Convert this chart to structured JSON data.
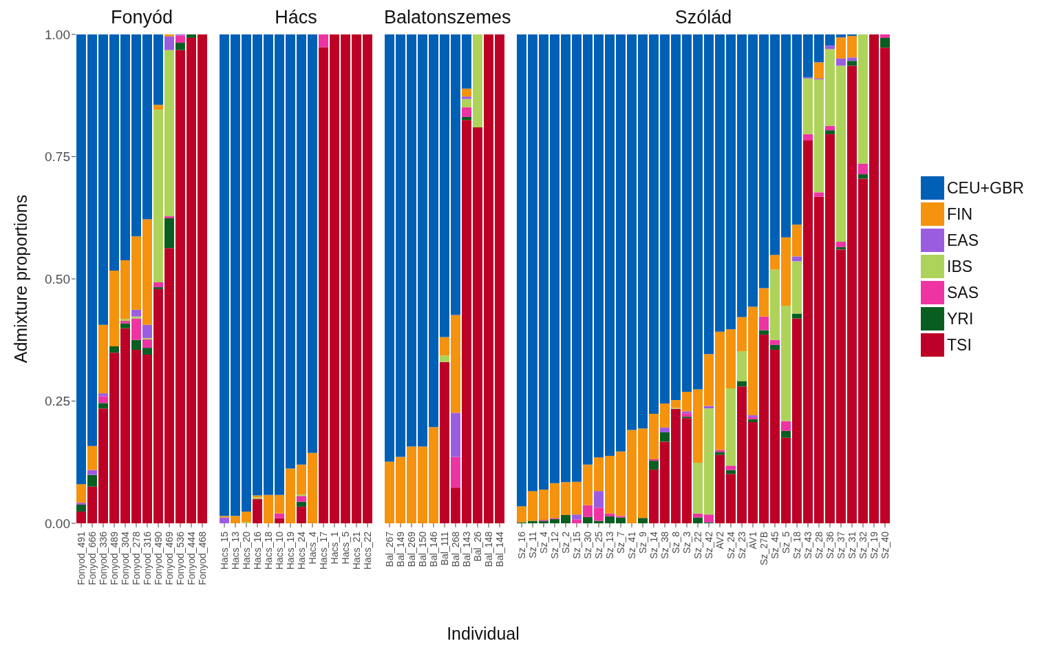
{
  "chart_data": [
    {
      "type": "bar",
      "title": "Fonyód",
      "ylabel": "Admixture proportions",
      "stacked": true,
      "categories": [
        "Fonyod_491",
        "Fonyod_666",
        "Fonyod_336",
        "Fonyod_489",
        "Fonyod_304",
        "Fonyod_278",
        "Fonyod_316",
        "Fonyod_490",
        "Fonyod_469",
        "Fonyod_536",
        "Fonyod_444",
        "Fonyod_468"
      ],
      "ylim": [
        0,
        1
      ],
      "yticks": [
        {
          "value": 0,
          "label": "0.00"
        },
        {
          "value": 0.25,
          "label": "0.25"
        },
        {
          "value": 0.5,
          "label": "0.50"
        },
        {
          "value": 0.75,
          "label": "0.75"
        },
        {
          "value": 1,
          "label": "1.00"
        }
      ],
      "series": [
        {
          "color": "#bd0026",
          "values": [
            0.024,
            0.075,
            0.235,
            0.349,
            0.399,
            0.355,
            0.345,
            0.479,
            0.563,
            0.968,
            0.993,
            1
          ]
        },
        {
          "color": "#075e20",
          "values": [
            0.014,
            0.024,
            0.011,
            0.013,
            0.01,
            0.02,
            0.014,
            0.004,
            0.061,
            0.015,
            0.007,
            0
          ]
        },
        {
          "color": "#ee33a3",
          "values": [
            0,
            0,
            0.014,
            0,
            0.005,
            0.044,
            0.017,
            0.01,
            0.004,
            0.015,
            0,
            0
          ]
        },
        {
          "color": "#aed35a",
          "values": [
            0,
            0,
            0,
            0,
            0.004,
            0.004,
            0.003,
            0.353,
            0.34,
            0,
            0,
            0
          ]
        },
        {
          "color": "#9b5de0",
          "values": [
            0.004,
            0.01,
            0.006,
            0,
            0,
            0.014,
            0.027,
            0,
            0.028,
            0.002,
            0,
            0
          ]
        },
        {
          "color": "#f5920e",
          "values": [
            0.038,
            0.049,
            0.14,
            0.155,
            0.12,
            0.15,
            0.216,
            0.01,
            0.004,
            0,
            0,
            0
          ]
        },
        {
          "color": "#0060b6",
          "values": [
            0.92,
            0.842,
            0.594,
            0.483,
            0.462,
            0.413,
            0.378,
            0.144,
            0,
            0,
            0,
            0
          ]
        }
      ]
    },
    {
      "type": "bar",
      "title": "Hács",
      "stacked": true,
      "tick_labels": "x",
      "categories": [
        "Hacs_15",
        "Hacs_13",
        "Hacs_20",
        "Hacs_16",
        "Hacs_18",
        "Hacs_10",
        "Hacs_19",
        "Hacs_24",
        "Hacs_4",
        "Hacs_17",
        "Hacs_1",
        "Hacs_5",
        "Hacs_21",
        "Hacs_22"
      ],
      "ylim": [
        0,
        1
      ],
      "series": [
        {
          "color": "#bd0026",
          "values": [
            0,
            0,
            0,
            0.05,
            0,
            0.01,
            0,
            0.034,
            0,
            0.974,
            1,
            1,
            1,
            1
          ]
        },
        {
          "color": "#075e20",
          "values": [
            0,
            0,
            0,
            0,
            0,
            0,
            0,
            0.01,
            0,
            0,
            0,
            0,
            0,
            0
          ]
        },
        {
          "color": "#ee33a3",
          "values": [
            0,
            0,
            0,
            0,
            0,
            0.01,
            0,
            0.012,
            0,
            0.026,
            0,
            0,
            0,
            0
          ]
        },
        {
          "color": "#aed35a",
          "values": [
            0,
            0,
            0.002,
            0.003,
            0,
            0,
            0,
            0.003,
            0,
            0,
            0,
            0,
            0,
            0
          ]
        },
        {
          "color": "#9b5de0",
          "values": [
            0.012,
            0,
            0,
            0,
            0,
            0,
            0,
            0,
            0,
            0,
            0,
            0,
            0,
            0
          ]
        },
        {
          "color": "#f5920e",
          "values": [
            0.003,
            0.015,
            0.022,
            0.004,
            0.058,
            0.038,
            0.112,
            0.061,
            0.144,
            0,
            0,
            0,
            0,
            0
          ]
        },
        {
          "color": "#0060b6",
          "values": [
            0.985,
            0.985,
            0.976,
            0.943,
            0.942,
            0.942,
            0.888,
            0.88,
            0.856,
            0,
            0,
            0,
            0,
            0
          ]
        }
      ]
    },
    {
      "type": "bar",
      "title": "Balatonszemes",
      "xlabel": "Individual",
      "stacked": true,
      "tick_labels": "x",
      "categories": [
        "Bal_267",
        "Bal_149",
        "Bal_269",
        "Bal_150",
        "Bal_146",
        "Bal_111",
        "Bal_268",
        "Bal_143",
        "Bal_26",
        "Bal_148",
        "Bal_144"
      ],
      "ylim": [
        0,
        1
      ],
      "series": [
        {
          "color": "#bd0026",
          "values": [
            0,
            0,
            0,
            0,
            0,
            0.33,
            0.073,
            0.825,
            0.81,
            1,
            1
          ]
        },
        {
          "color": "#075e20",
          "values": [
            0,
            0,
            0,
            0,
            0,
            0,
            0,
            0.006,
            0,
            0,
            0
          ]
        },
        {
          "color": "#ee33a3",
          "values": [
            0,
            0,
            0,
            0,
            0,
            0,
            0.063,
            0.02,
            0,
            0,
            0
          ]
        },
        {
          "color": "#aed35a",
          "values": [
            0,
            0,
            0,
            0,
            0,
            0.013,
            0,
            0.017,
            0.19,
            0,
            0
          ]
        },
        {
          "color": "#9b5de0",
          "values": [
            0,
            0,
            0,
            0,
            0,
            0,
            0.09,
            0.005,
            0,
            0,
            0
          ]
        },
        {
          "color": "#f5920e",
          "values": [
            0.126,
            0.136,
            0.157,
            0.157,
            0.197,
            0.038,
            0.2,
            0.016,
            0,
            0,
            0
          ]
        },
        {
          "color": "#0060b6",
          "values": [
            0.874,
            0.864,
            0.843,
            0.843,
            0.803,
            0.619,
            0.574,
            0.111,
            0,
            0,
            0
          ]
        }
      ]
    },
    {
      "type": "bar",
      "title": "Szólád",
      "stacked": true,
      "tick_labels": "x",
      "legend": "right",
      "categories": [
        "Sz_16",
        "Sz_11",
        "Sz_4",
        "Sz_12",
        "Sz_2",
        "Sz_15",
        "Sz_30",
        "Sz_25",
        "Sz_13",
        "Sz_7",
        "Sz_41",
        "Sz_9",
        "Sz_14",
        "Sz_38",
        "Sz_8",
        "Sz_3",
        "Sz_22",
        "Sz_42",
        "AV2",
        "Sz_24",
        "Sz_23",
        "AV1",
        "Sz_27B",
        "Sz_45",
        "Sz_5",
        "Sz_18",
        "Sz_43",
        "Sz_28",
        "Sz_36",
        "Sz_37",
        "Sz_31",
        "Sz_32",
        "Sz_19",
        "Sz_40"
      ],
      "ylim": [
        0,
        1
      ],
      "series": [
        {
          "name": "TSI",
          "color": "#bd0026",
          "values": [
            0,
            0,
            0,
            0,
            0,
            0,
            0,
            0,
            0,
            0,
            0,
            0,
            0.11,
            0.167,
            0.234,
            0.215,
            0,
            0,
            0.14,
            0.101,
            0.28,
            0.207,
            0.386,
            0.355,
            0.175,
            0.419,
            0.783,
            0.668,
            0.796,
            0.56,
            0.936,
            0.705,
            1,
            0.973
          ]
        },
        {
          "name": "YRI",
          "color": "#075e20",
          "values": [
            0.002,
            0.005,
            0.005,
            0.009,
            0.017,
            0,
            0.013,
            0.005,
            0.014,
            0.012,
            0,
            0.011,
            0.018,
            0.019,
            0,
            0.003,
            0.012,
            0.002,
            0.006,
            0.008,
            0.011,
            0.006,
            0.009,
            0.01,
            0.014,
            0.01,
            0,
            0,
            0.008,
            0.005,
            0.01,
            0.009,
            0,
            0.02
          ]
        },
        {
          "name": "SAS",
          "color": "#ee33a3",
          "values": [
            0,
            0,
            0.002,
            0.002,
            0,
            0.008,
            0.024,
            0.027,
            0.006,
            0.003,
            0,
            0,
            0.003,
            0,
            0,
            0.007,
            0.008,
            0.016,
            0.004,
            0.009,
            0,
            0.004,
            0.028,
            0.01,
            0.02,
            0,
            0.013,
            0.009,
            0.009,
            0.011,
            0,
            0.022,
            0,
            0.007
          ]
        },
        {
          "name": "IBS",
          "color": "#aed35a",
          "values": [
            0,
            0,
            0,
            0,
            0,
            0,
            0,
            0,
            0,
            0,
            0,
            0,
            0,
            0,
            0.002,
            0,
            0.104,
            0.217,
            0,
            0.158,
            0.061,
            0,
            0,
            0.144,
            0.236,
            0.107,
            0.114,
            0.231,
            0.157,
            0.36,
            0,
            0.264,
            0,
            0
          ]
        },
        {
          "name": "EAS",
          "color": "#9b5de0",
          "values": [
            0,
            0,
            0,
            0,
            0,
            0.01,
            0,
            0.034,
            0,
            0,
            0,
            0,
            0,
            0.01,
            0,
            0.004,
            0,
            0.005,
            0,
            0,
            0,
            0.004,
            0,
            0,
            0,
            0.01,
            0.002,
            0.002,
            0.007,
            0.015,
            0.007,
            0,
            0,
            0
          ]
        },
        {
          "name": "FIN",
          "color": "#f5920e",
          "values": [
            0.033,
            0.061,
            0.062,
            0.071,
            0.067,
            0.067,
            0.083,
            0.069,
            0.118,
            0.132,
            0.191,
            0.183,
            0.093,
            0.049,
            0.016,
            0.04,
            0.15,
            0.106,
            0.242,
            0.121,
            0.07,
            0.222,
            0.058,
            0.03,
            0.14,
            0.065,
            0,
            0.033,
            0,
            0.043,
            0.044,
            0,
            0,
            0
          ]
        },
        {
          "name": "CEU+GBR",
          "color": "#0060b6",
          "values": [
            0.965,
            0.934,
            0.931,
            0.918,
            0.916,
            0.915,
            0.88,
            0.865,
            0.862,
            0.853,
            0.809,
            0.806,
            0.776,
            0.755,
            0.748,
            0.731,
            0.726,
            0.654,
            0.608,
            0.603,
            0.578,
            0.557,
            0.519,
            0.451,
            0.415,
            0.389,
            0.088,
            0.057,
            0.023,
            0.006,
            0.003,
            0,
            0,
            0
          ]
        }
      ]
    }
  ]
}
